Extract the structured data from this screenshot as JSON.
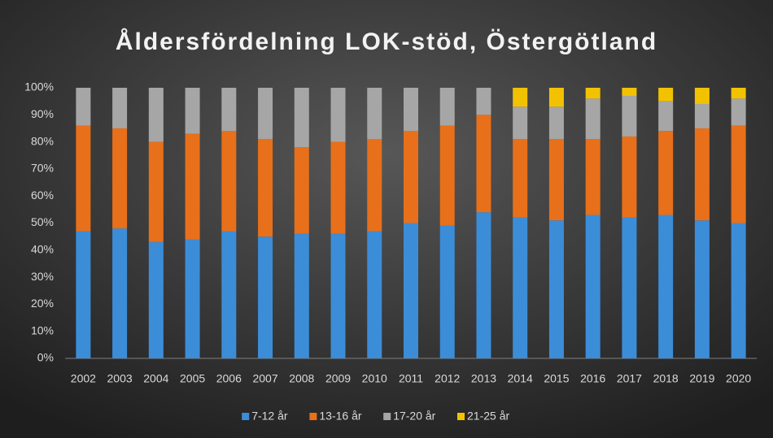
{
  "chart_data": {
    "type": "stacked_bar",
    "title": "Åldersfördelning LOK-stöd, Östergötland",
    "categories": [
      "2002",
      "2003",
      "2004",
      "2005",
      "2006",
      "2007",
      "2008",
      "2009",
      "2010",
      "2011",
      "2012",
      "2013",
      "2014",
      "2015",
      "2016",
      "2017",
      "2018",
      "2019",
      "2020"
    ],
    "series": [
      {
        "name": "7-12 år",
        "color": "#3c8dd8",
        "values": [
          47,
          48,
          43,
          44,
          47,
          45,
          46,
          46,
          47,
          50,
          49,
          54,
          52,
          51,
          53,
          52,
          53,
          51,
          50
        ]
      },
      {
        "name": "13-16 år",
        "color": "#e8701a",
        "values": [
          39,
          37,
          37,
          39,
          37,
          36,
          32,
          34,
          34,
          34,
          37,
          36,
          29,
          30,
          28,
          30,
          31,
          34,
          36
        ]
      },
      {
        "name": "17-20 år",
        "color": "#a6a6a6",
        "values": [
          14,
          15,
          20,
          17,
          16,
          19,
          22,
          20,
          19,
          16,
          14,
          10,
          12,
          12,
          15,
          15,
          11,
          9,
          10
        ]
      },
      {
        "name": "21-25 år",
        "color": "#f2c200",
        "values": [
          0,
          0,
          0,
          0,
          0,
          0,
          0,
          0,
          0,
          0,
          0,
          0,
          7,
          7,
          4,
          3,
          5,
          6,
          4
        ]
      }
    ],
    "ylim": [
      0,
      100
    ],
    "yticks": [
      {
        "value": 0,
        "label": "0%"
      },
      {
        "value": 10,
        "label": "10%"
      },
      {
        "value": 20,
        "label": "20%"
      },
      {
        "value": 30,
        "label": "30%"
      },
      {
        "value": 40,
        "label": "40%"
      },
      {
        "value": 50,
        "label": "50%"
      },
      {
        "value": 60,
        "label": "60%"
      },
      {
        "value": 70,
        "label": "70%"
      },
      {
        "value": 80,
        "label": "80%"
      },
      {
        "value": 90,
        "label": "90%"
      },
      {
        "value": 100,
        "label": "100%"
      }
    ],
    "legend": "bottom"
  }
}
